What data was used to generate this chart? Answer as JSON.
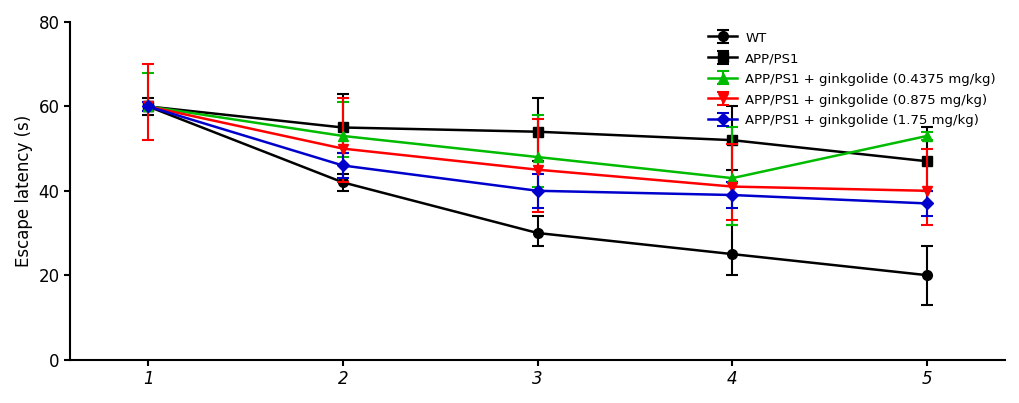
{
  "x": [
    1,
    2,
    3,
    4,
    5
  ],
  "series": [
    {
      "label": "WT",
      "y": [
        60,
        42,
        30,
        25,
        20
      ],
      "yerr_lo": [
        1,
        2,
        3,
        5,
        7
      ],
      "yerr_hi": [
        1,
        2,
        4,
        7,
        7
      ],
      "color": "#000000",
      "marker": "o",
      "markersize": 7,
      "linestyle": "-",
      "linewidth": 1.8,
      "zorder": 4
    },
    {
      "label": "APP/PS1",
      "y": [
        60,
        55,
        54,
        52,
        47
      ],
      "yerr_lo": [
        2,
        6,
        7,
        7,
        7
      ],
      "yerr_hi": [
        2,
        8,
        8,
        8,
        8
      ],
      "color": "#000000",
      "marker": "s",
      "markersize": 7,
      "linestyle": "-",
      "linewidth": 1.8,
      "zorder": 3
    },
    {
      "label": "APP/PS1 + ginkgolide (0.4375 mg/kg)",
      "y": [
        60,
        53,
        48,
        43,
        53
      ],
      "yerr_lo": [
        1,
        5,
        7,
        11,
        1
      ],
      "yerr_hi": [
        8,
        8,
        10,
        12,
        1
      ],
      "color": "#00bb00",
      "marker": "^",
      "markersize": 7,
      "linestyle": "-",
      "linewidth": 1.8,
      "zorder": 5
    },
    {
      "label": "APP/PS1 + ginkgolide (0.875 mg/kg)",
      "y": [
        60,
        50,
        45,
        41,
        40
      ],
      "yerr_lo": [
        8,
        8,
        10,
        8,
        8
      ],
      "yerr_hi": [
        10,
        12,
        12,
        10,
        10
      ],
      "color": "#ff0000",
      "marker": "v",
      "markersize": 7,
      "linestyle": "-",
      "linewidth": 1.8,
      "zorder": 5
    },
    {
      "label": "APP/PS1 + ginkgolide (1.75 mg/kg)",
      "y": [
        60,
        46,
        40,
        39,
        37
      ],
      "yerr_lo": [
        1,
        3,
        4,
        3,
        3
      ],
      "yerr_hi": [
        1,
        3,
        4,
        3,
        3
      ],
      "color": "#0000cc",
      "marker": "D",
      "markersize": 6,
      "linestyle": "-",
      "linewidth": 1.8,
      "zorder": 5
    }
  ],
  "ylabel": "Escape latency (s)",
  "ylabel_fontsize": 12,
  "xlim": [
    0.6,
    5.4
  ],
  "ylim": [
    0,
    80
  ],
  "yticks": [
    0,
    20,
    40,
    60,
    80
  ],
  "xtick_positions": [
    1,
    2,
    3,
    4,
    5
  ],
  "xtick_labels": [
    "1",
    "2",
    "3",
    "4",
    "5"
  ],
  "legend_fontsize": 9.5,
  "background_color": "#ffffff",
  "capsize": 4,
  "figwidth": 10.2,
  "figheight": 4.03,
  "dpi": 100
}
